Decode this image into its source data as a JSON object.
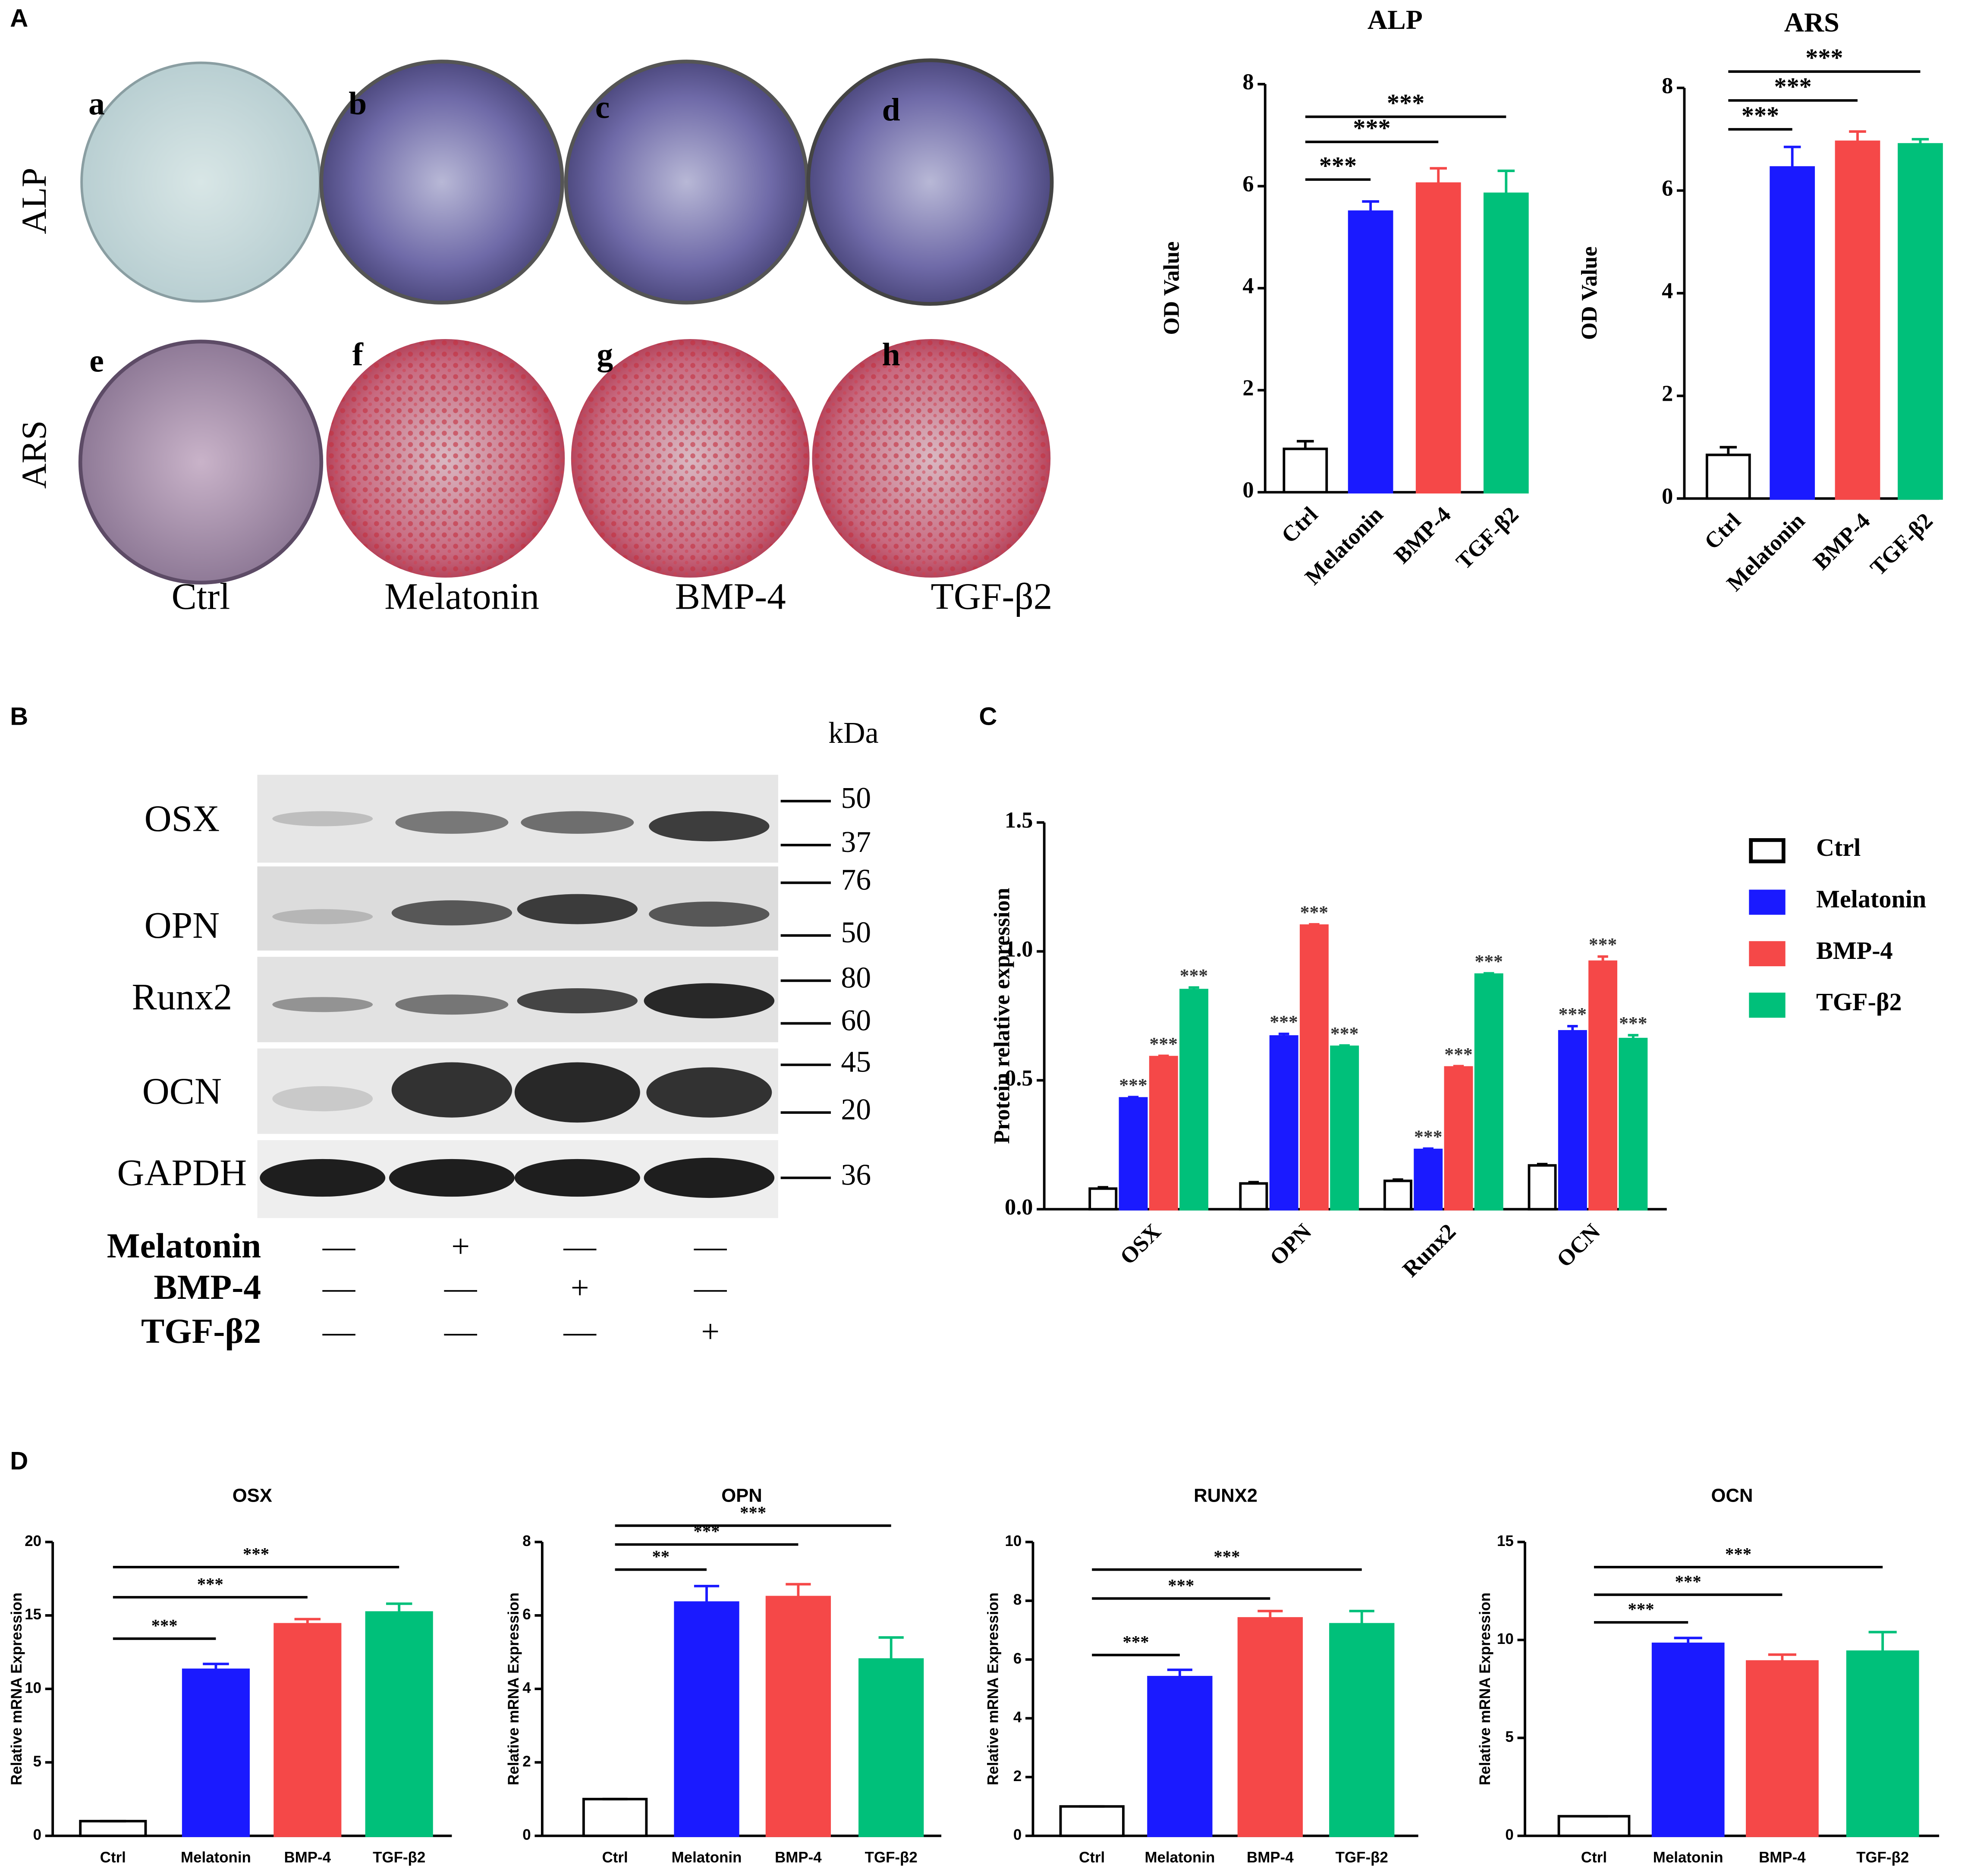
{
  "panel_labels": [
    "A",
    "B",
    "C",
    "D"
  ],
  "staining": {
    "row_labels": [
      "ALP",
      "ARS"
    ],
    "image_letters": [
      "a",
      "b",
      "c",
      "d",
      "e",
      "f",
      "g",
      "h"
    ],
    "column_labels": [
      "Ctrl",
      "Melatonin",
      "BMP-4",
      "TGF-β2"
    ]
  },
  "western_blot": {
    "proteins": [
      "OSX",
      "OPN",
      "Runx2",
      "OCN",
      "GAPDH"
    ],
    "kda_label": "kDa",
    "markers": [
      50,
      37,
      76,
      50,
      80,
      60,
      45,
      20,
      36
    ],
    "treatments": [
      {
        "label": "Melatonin",
        "cells": [
          "—",
          "+",
          "—",
          "—"
        ]
      },
      {
        "label": "BMP-4",
        "cells": [
          "—",
          "—",
          "+",
          "—"
        ]
      },
      {
        "label": "TGF-β2",
        "cells": [
          "—",
          "—",
          "—",
          "+"
        ]
      }
    ]
  },
  "chart_data": [
    {
      "type": "bar",
      "title": "ALP",
      "y_label": "OD Value",
      "categories": [
        "Ctrl",
        "Melatonin",
        "BMP-4",
        "TGF-β2"
      ],
      "values": [
        0.85,
        5.5,
        6.05,
        5.85
      ],
      "errors": [
        0.15,
        0.2,
        0.3,
        0.45
      ],
      "colors": [
        "#ffffff",
        "#1a1aff",
        "#f54848",
        "#00c07a"
      ],
      "ylim": [
        0,
        8
      ],
      "yticks": [
        0,
        2,
        4,
        6,
        8
      ],
      "significance": [
        {
          "label": "***",
          "from": "Ctrl",
          "to": "Melatonin"
        },
        {
          "label": "***",
          "from": "Ctrl",
          "to": "BMP-4"
        },
        {
          "label": "***",
          "from": "Ctrl",
          "to": "TGF-β2"
        }
      ]
    },
    {
      "type": "bar",
      "title": "ARS",
      "y_label": "OD Value",
      "categories": [
        "Ctrl",
        "Melatonin",
        "BMP-4",
        "TGF-β2"
      ],
      "values": [
        0.85,
        6.45,
        6.95,
        6.9
      ],
      "errors": [
        0.15,
        0.4,
        0.2,
        0.1
      ],
      "colors": [
        "#ffffff",
        "#1a1aff",
        "#f54848",
        "#00c07a"
      ],
      "ylim": [
        0,
        8
      ],
      "yticks": [
        0,
        2,
        4,
        6,
        8
      ],
      "significance": [
        {
          "label": "***",
          "from": "Ctrl",
          "to": "Melatonin"
        },
        {
          "label": "***",
          "from": "Ctrl",
          "to": "BMP-4"
        },
        {
          "label": "***",
          "from": "Ctrl",
          "to": "TGF-β2"
        }
      ]
    },
    {
      "type": "grouped-bar",
      "y_label": "Protein relative expression",
      "categories": [
        "OSX",
        "OPN",
        "Runx2",
        "OCN"
      ],
      "ylim": [
        0,
        1.5
      ],
      "yticks": [
        {
          "value": 0,
          "label": "0.0"
        },
        0.5,
        {
          "value": 1,
          "label": "1.0"
        },
        1.5
      ],
      "legend": "right",
      "series": [
        {
          "name": "Ctrl",
          "color": "#ffffff",
          "values": [
            0.08,
            0.1,
            0.11,
            0.17
          ],
          "errors": [
            0.005,
            0.005,
            0.005,
            0.005
          ],
          "significance": [
            null,
            null,
            null,
            null
          ]
        },
        {
          "name": "Melatonin",
          "color": "#1a1aff",
          "values": [
            0.43,
            0.67,
            0.23,
            0.69
          ],
          "errors": [
            0.005,
            0.01,
            0.005,
            0.02
          ],
          "significance": [
            "***",
            "***",
            "***",
            "***"
          ]
        },
        {
          "name": "BMP-4",
          "color": "#f54848",
          "values": [
            0.59,
            1.1,
            0.55,
            0.96
          ],
          "errors": [
            0.005,
            0.005,
            0.005,
            0.02
          ],
          "significance": [
            "***",
            "***",
            "***",
            "***"
          ]
        },
        {
          "name": "TGF-β2",
          "color": "#00c07a",
          "values": [
            0.85,
            0.63,
            0.91,
            0.66
          ],
          "errors": [
            0.01,
            0.005,
            0.005,
            0.015
          ],
          "significance": [
            "***",
            "***",
            "***",
            "***"
          ]
        }
      ]
    },
    {
      "type": "bar",
      "title": "OSX",
      "y_label": "Relative mRNA Expression",
      "categories": [
        "Ctrl",
        "Melatonin",
        "BMP-4",
        "TGF-β2"
      ],
      "values": [
        1,
        11.3,
        14.4,
        15.2
      ],
      "errors": [
        0,
        0.4,
        0.35,
        0.6
      ],
      "colors": [
        "#ffffff",
        "#1a1aff",
        "#f54848",
        "#00c07a"
      ],
      "ylim": [
        0,
        20
      ],
      "yticks": [
        0,
        5,
        10,
        15,
        20
      ],
      "significance": [
        {
          "label": "***",
          "from": "Ctrl",
          "to": "Melatonin"
        },
        {
          "label": "***",
          "from": "Ctrl",
          "to": "BMP-4"
        },
        {
          "label": "***",
          "from": "Ctrl",
          "to": "TGF-β2"
        }
      ]
    },
    {
      "type": "bar",
      "title": "OPN",
      "y_label": "Relative mRNA Expression",
      "categories": [
        "Ctrl",
        "Melatonin",
        "BMP-4",
        "TGF-β2"
      ],
      "values": [
        1,
        6.35,
        6.5,
        4.8
      ],
      "errors": [
        0,
        0.45,
        0.35,
        0.6
      ],
      "colors": [
        "#ffffff",
        "#1a1aff",
        "#f54848",
        "#00c07a"
      ],
      "ylim": [
        0,
        8
      ],
      "yticks": [
        0,
        2,
        4,
        6,
        8
      ],
      "significance": [
        {
          "label": "**",
          "from": "Ctrl",
          "to": "Melatonin"
        },
        {
          "label": "***",
          "from": "Ctrl",
          "to": "BMP-4"
        },
        {
          "label": "***",
          "from": "Ctrl",
          "to": "TGF-β2"
        }
      ]
    },
    {
      "type": "bar",
      "title": "RUNX2",
      "y_label": "Relative mRNA Expression",
      "categories": [
        "Ctrl",
        "Melatonin",
        "BMP-4",
        "TGF-β2"
      ],
      "values": [
        1,
        5.4,
        7.4,
        7.2
      ],
      "errors": [
        0,
        0.25,
        0.25,
        0.45
      ],
      "colors": [
        "#ffffff",
        "#1a1aff",
        "#f54848",
        "#00c07a"
      ],
      "ylim": [
        0,
        10
      ],
      "yticks": [
        0,
        2,
        4,
        6,
        8,
        10
      ],
      "significance": [
        {
          "label": "***",
          "from": "Ctrl",
          "to": "Melatonin"
        },
        {
          "label": "***",
          "from": "Ctrl",
          "to": "BMP-4"
        },
        {
          "label": "***",
          "from": "Ctrl",
          "to": "TGF-β2"
        }
      ]
    },
    {
      "type": "bar",
      "title": "OCN",
      "y_label": "Relative mRNA Expression",
      "categories": [
        "Ctrl",
        "Melatonin",
        "BMP-4",
        "TGF-β2"
      ],
      "values": [
        1,
        9.8,
        8.9,
        9.4
      ],
      "errors": [
        0,
        0.3,
        0.35,
        1
      ],
      "colors": [
        "#ffffff",
        "#1a1aff",
        "#f54848",
        "#00c07a"
      ],
      "ylim": [
        0,
        15
      ],
      "yticks": [
        0,
        5,
        10,
        15
      ],
      "significance": [
        {
          "label": "***",
          "from": "Ctrl",
          "to": "Melatonin"
        },
        {
          "label": "***",
          "from": "Ctrl",
          "to": "BMP-4"
        },
        {
          "label": "***",
          "from": "Ctrl",
          "to": "TGF-β2"
        }
      ]
    }
  ]
}
